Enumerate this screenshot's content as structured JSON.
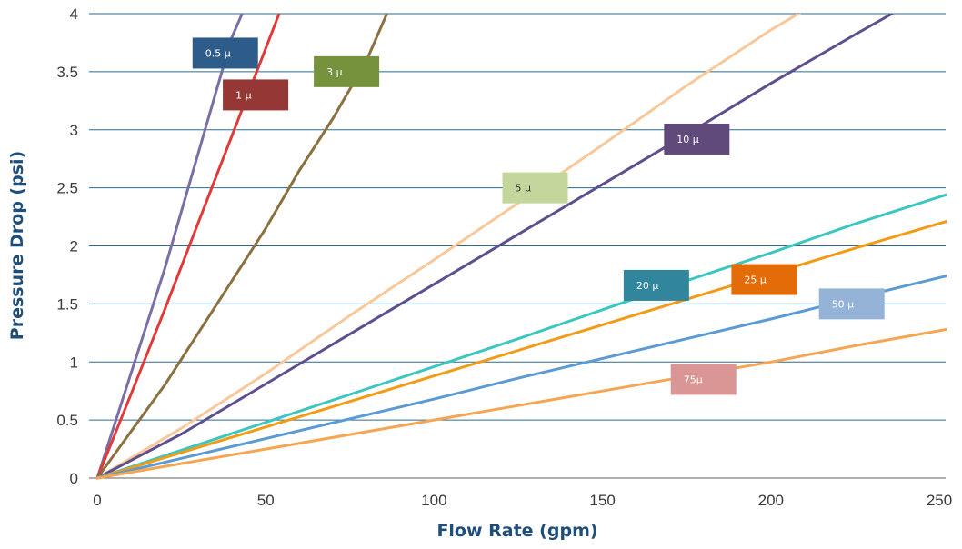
{
  "chart_data": {
    "type": "line",
    "title": "",
    "xlabel": "Flow Rate (gpm)",
    "ylabel": "Pressure Drop (psi)",
    "xlim": [
      0,
      250
    ],
    "ylim": [
      0,
      4
    ],
    "x_ticks": [
      "0",
      "50",
      "100",
      "150",
      "200",
      "250"
    ],
    "y_ticks": [
      "0",
      "0.5",
      "1",
      "1.5",
      "2",
      "2.5",
      "3",
      "3.5",
      "4"
    ],
    "grid": "horizontal",
    "legend": "inline labels",
    "axis_title_color": "#1f4e79",
    "series": [
      {
        "name": "0.5 µ",
        "color": "#7a6fa5",
        "label_bg": "#2e5c8a",
        "label_color": "#ffffff",
        "label_pos": [
          38,
          3.66
        ],
        "x": [
          0,
          10,
          20,
          25,
          30,
          35,
          40,
          43
        ],
        "y": [
          0,
          0.9,
          1.8,
          2.3,
          2.8,
          3.3,
          3.8,
          4.0
        ]
      },
      {
        "name": "1 µ",
        "color": "#e03a3a",
        "label_bg": "#953735",
        "label_color": "#ffffff",
        "label_pos": [
          47,
          3.3
        ],
        "x": [
          0,
          10,
          20,
          30,
          40,
          50,
          54
        ],
        "y": [
          0,
          0.72,
          1.45,
          2.2,
          2.95,
          3.7,
          4.0
        ]
      },
      {
        "name": "3 µ",
        "color": "#8b7040",
        "label_bg": "#76923c",
        "label_color": "#ffffff",
        "label_pos": [
          74,
          3.5
        ],
        "x": [
          0,
          10,
          20,
          30,
          40,
          50,
          60,
          70,
          80,
          86
        ],
        "y": [
          0,
          0.4,
          0.8,
          1.25,
          1.7,
          2.15,
          2.65,
          3.1,
          3.6,
          4.0
        ]
      },
      {
        "name": "5 µ",
        "color": "#f9c89a",
        "label_bg": "#c3d69b",
        "label_color": "#333333",
        "label_pos": [
          130,
          2.5
        ],
        "x": [
          0,
          25,
          50,
          75,
          100,
          125,
          150,
          175,
          200,
          214
        ],
        "y": [
          0,
          0.43,
          0.9,
          1.4,
          1.88,
          2.37,
          2.87,
          3.38,
          3.86,
          4.1
        ]
      },
      {
        "name": "10 µ",
        "color": "#5f4f8f",
        "label_bg": "#604a7b",
        "label_color": "#ffffff",
        "label_pos": [
          178,
          2.92
        ],
        "x": [
          0,
          25,
          50,
          75,
          100,
          125,
          150,
          175,
          200,
          225,
          236
        ],
        "y": [
          0,
          0.38,
          0.81,
          1.24,
          1.67,
          2.1,
          2.53,
          2.96,
          3.4,
          3.82,
          4.0
        ]
      },
      {
        "name": "20 µ",
        "color": "#3cc6c0",
        "label_bg": "#31859c",
        "label_color": "#ffffff",
        "label_pos": [
          166,
          1.66
        ],
        "x": [
          0,
          25,
          50,
          75,
          100,
          125,
          150,
          175,
          200,
          225,
          252
        ],
        "y": [
          0,
          0.24,
          0.48,
          0.72,
          0.96,
          1.2,
          1.45,
          1.7,
          1.94,
          2.19,
          2.44
        ]
      },
      {
        "name": "25 µ",
        "color": "#f29b16",
        "label_bg": "#e36c09",
        "label_color": "#ffffff",
        "label_pos": [
          198,
          1.71
        ],
        "x": [
          0,
          25,
          50,
          75,
          100,
          125,
          150,
          175,
          200,
          225,
          252
        ],
        "y": [
          0,
          0.22,
          0.44,
          0.66,
          0.88,
          1.1,
          1.32,
          1.54,
          1.76,
          1.98,
          2.21
        ]
      },
      {
        "name": "50 µ",
        "color": "#5b9bd5",
        "label_bg": "#95b3d7",
        "label_color": "#ffffff",
        "label_pos": [
          224,
          1.5
        ],
        "x": [
          0,
          25,
          50,
          75,
          100,
          125,
          150,
          175,
          200,
          225,
          252
        ],
        "y": [
          0,
          0.17,
          0.34,
          0.51,
          0.68,
          0.86,
          1.03,
          1.2,
          1.37,
          1.55,
          1.74
        ]
      },
      {
        "name": "75µ",
        "color": "#f5a652",
        "label_bg": "#d99694",
        "label_color": "#ffffff",
        "label_pos": [
          180,
          0.85
        ],
        "x": [
          0,
          25,
          50,
          75,
          100,
          125,
          150,
          175,
          200,
          225,
          252
        ],
        "y": [
          0,
          0.125,
          0.25,
          0.375,
          0.5,
          0.625,
          0.75,
          0.875,
          1.0,
          1.14,
          1.28
        ]
      }
    ]
  }
}
